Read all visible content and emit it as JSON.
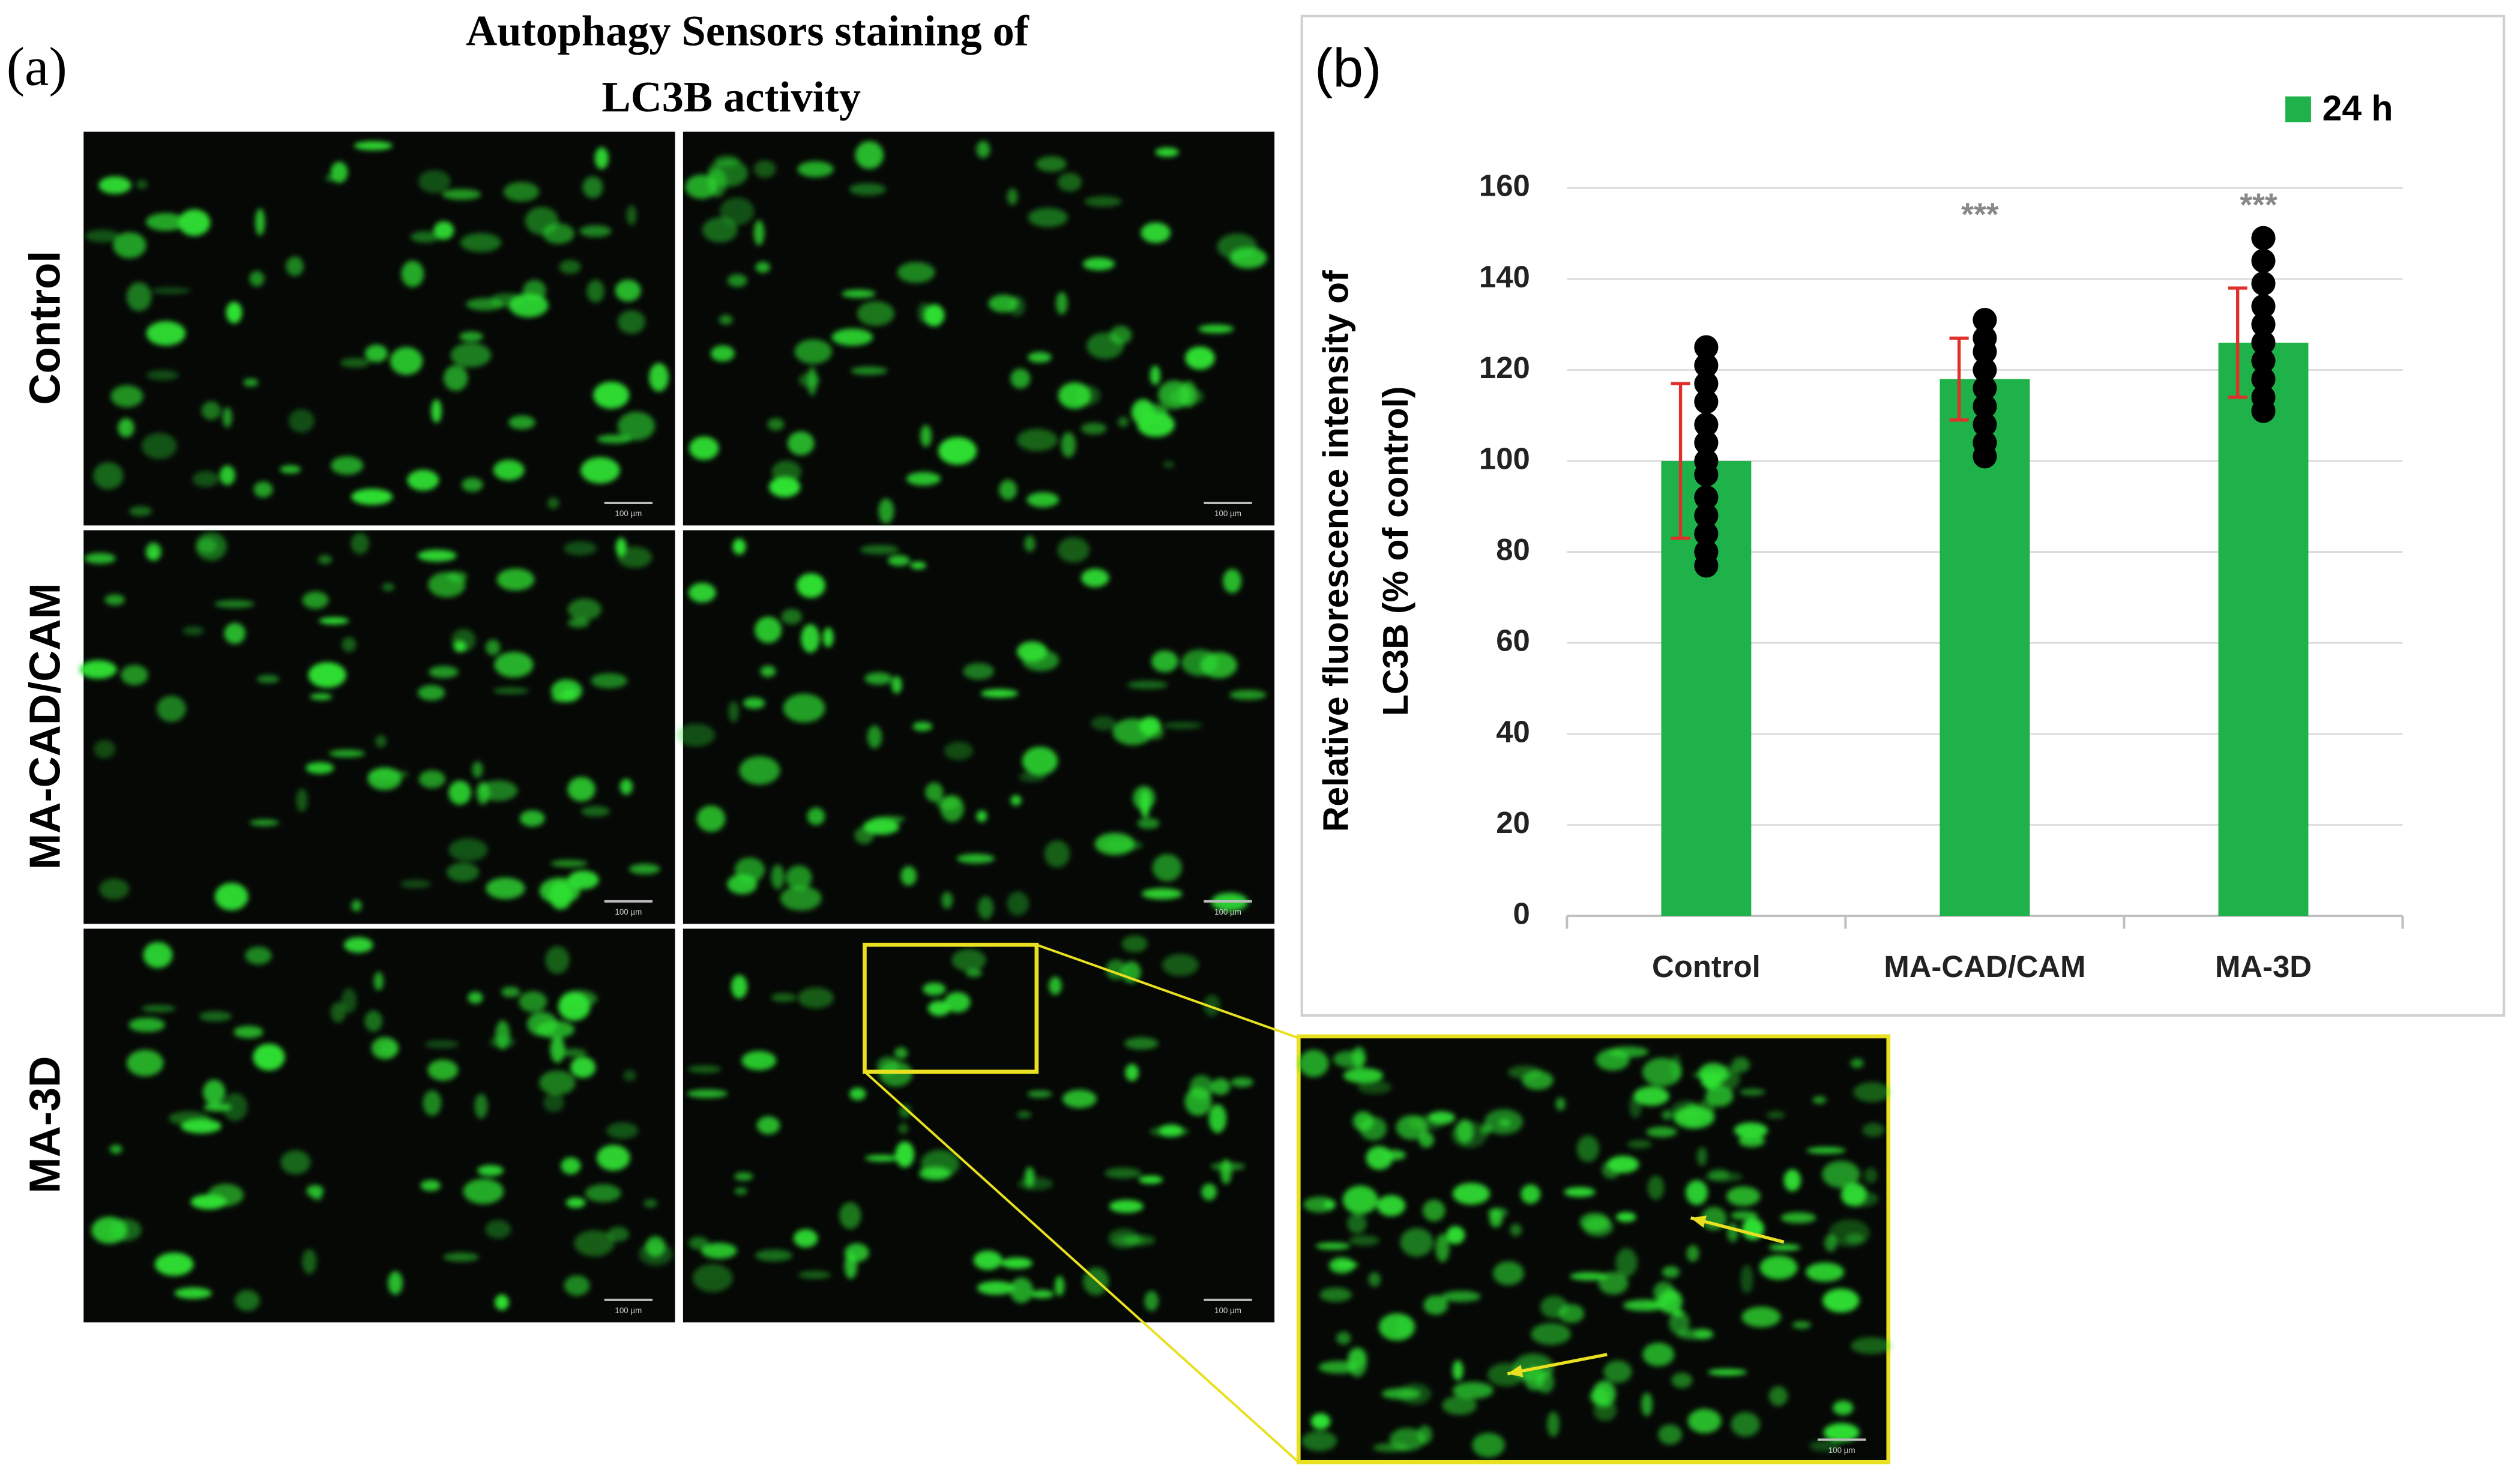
{
  "panel_a": {
    "label": "(a)",
    "title": [
      "Autophagy Sensors staining of",
      "LC3B activity"
    ],
    "rows": [
      "Control",
      "MA-CAD/CAM",
      "MA-3D"
    ],
    "scale_bar": "100 µm"
  },
  "panel_b": {
    "label": "(b)"
  },
  "chart_data": {
    "type": "bar",
    "categories": [
      "Control",
      "MA-CAD/CAM",
      "MA-3D"
    ],
    "series": [
      {
        "name": "24 h",
        "color": "#1fb24a",
        "values": [
          100,
          118,
          126
        ],
        "errors": [
          17,
          9,
          12
        ]
      }
    ],
    "points": [
      [
        77,
        80,
        84,
        88,
        92,
        97,
        100,
        104,
        108,
        113,
        117,
        121,
        125
      ],
      [
        101,
        104,
        108,
        112,
        116,
        120,
        124,
        127,
        131
      ],
      [
        111,
        114,
        118,
        122,
        126,
        130,
        134,
        139,
        144,
        149
      ]
    ],
    "significance": [
      null,
      "***",
      "***"
    ],
    "ylabel": [
      "Relative fluorescence intensity of",
      "LC3B (% of control)"
    ],
    "ylim": [
      0,
      160
    ],
    "yticks": [
      0,
      20,
      40,
      60,
      80,
      100,
      120,
      140,
      160
    ],
    "grid": true,
    "error_color": "#e0302a",
    "point_color": "#000000",
    "legend": "top-right"
  }
}
